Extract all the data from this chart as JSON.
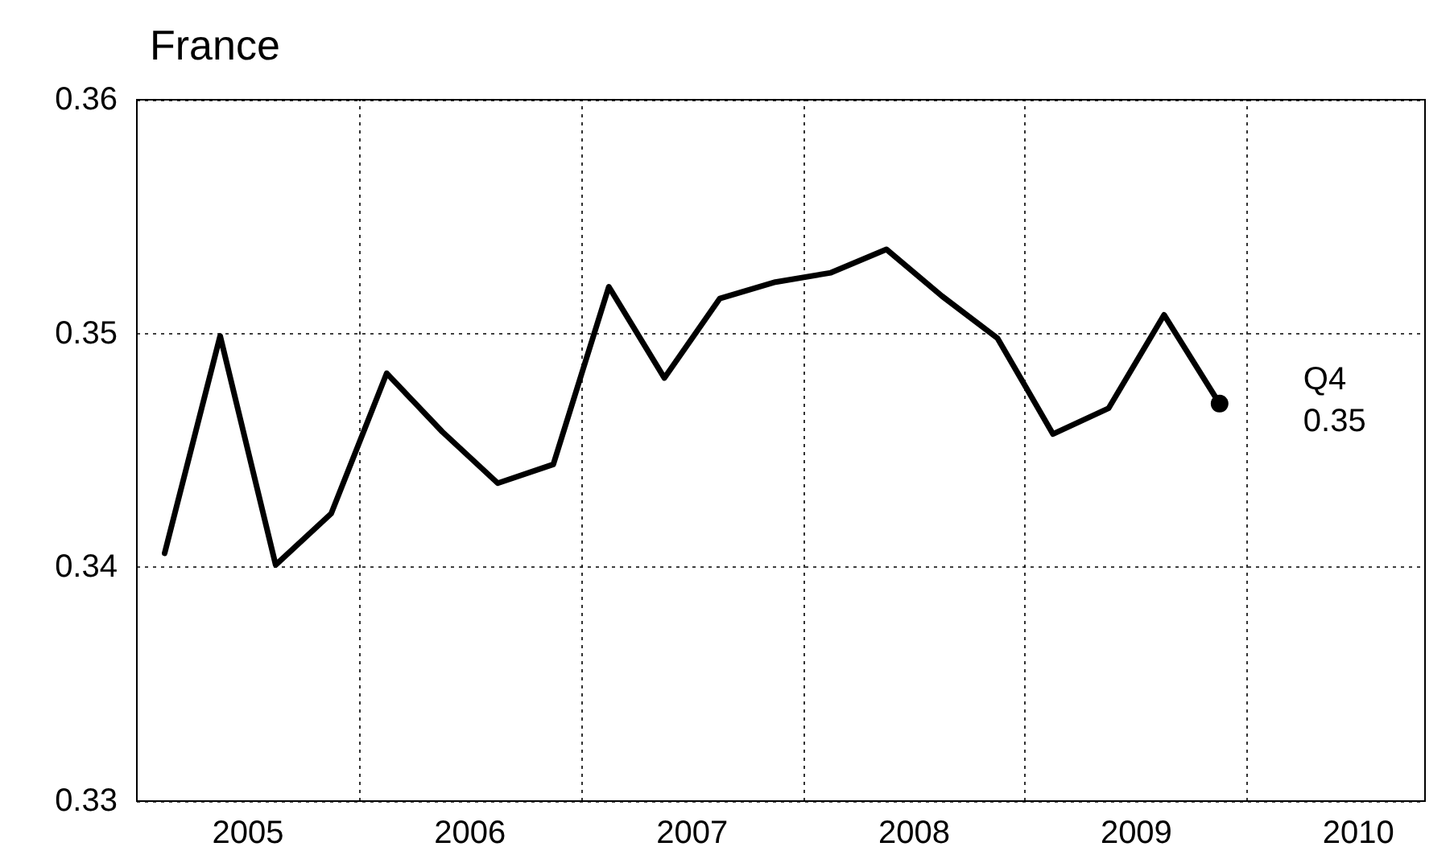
{
  "chart_data": {
    "type": "line",
    "title": "France",
    "x": [
      2005.125,
      2005.375,
      2005.625,
      2005.875,
      2006.125,
      2006.375,
      2006.625,
      2006.875,
      2007.125,
      2007.375,
      2007.625,
      2007.875,
      2008.125,
      2008.375,
      2008.625,
      2008.875,
      2009.125,
      2009.375,
      2009.625,
      2009.875
    ],
    "series": [
      {
        "color": "#000000",
        "values": [
          0.3406,
          0.3499,
          0.3401,
          0.3423,
          0.3483,
          0.3458,
          0.3436,
          0.3444,
          0.352,
          0.3481,
          0.3515,
          0.3522,
          0.3526,
          0.3536,
          0.3516,
          0.3498,
          0.3457,
          0.3468,
          0.3508,
          0.347
        ]
      }
    ],
    "xlim": [
      2005,
      2010.8
    ],
    "xticks": [
      {
        "value": 2005.5,
        "label": "2005"
      },
      {
        "value": 2006,
        "label": null
      },
      {
        "value": 2006.5,
        "label": "2006"
      },
      {
        "value": 2007,
        "label": null
      },
      {
        "value": 2007.5,
        "label": "2007"
      },
      {
        "value": 2008,
        "label": null
      },
      {
        "value": 2008.5,
        "label": "2008"
      },
      {
        "value": 2009,
        "label": null
      },
      {
        "value": 2009.5,
        "label": "2009"
      },
      {
        "value": 2010,
        "label": null
      },
      {
        "value": 2010.5,
        "label": "2010"
      }
    ],
    "ylim": [
      0.33,
      0.36
    ],
    "yticks": [
      0.33,
      0.34,
      0.35,
      0.36
    ],
    "grid": true,
    "marker": "none",
    "line_style": "solid",
    "annotations": [
      {
        "text": "Q4\n0.35",
        "x": 2009.875,
        "y": 0.347
      }
    ]
  }
}
